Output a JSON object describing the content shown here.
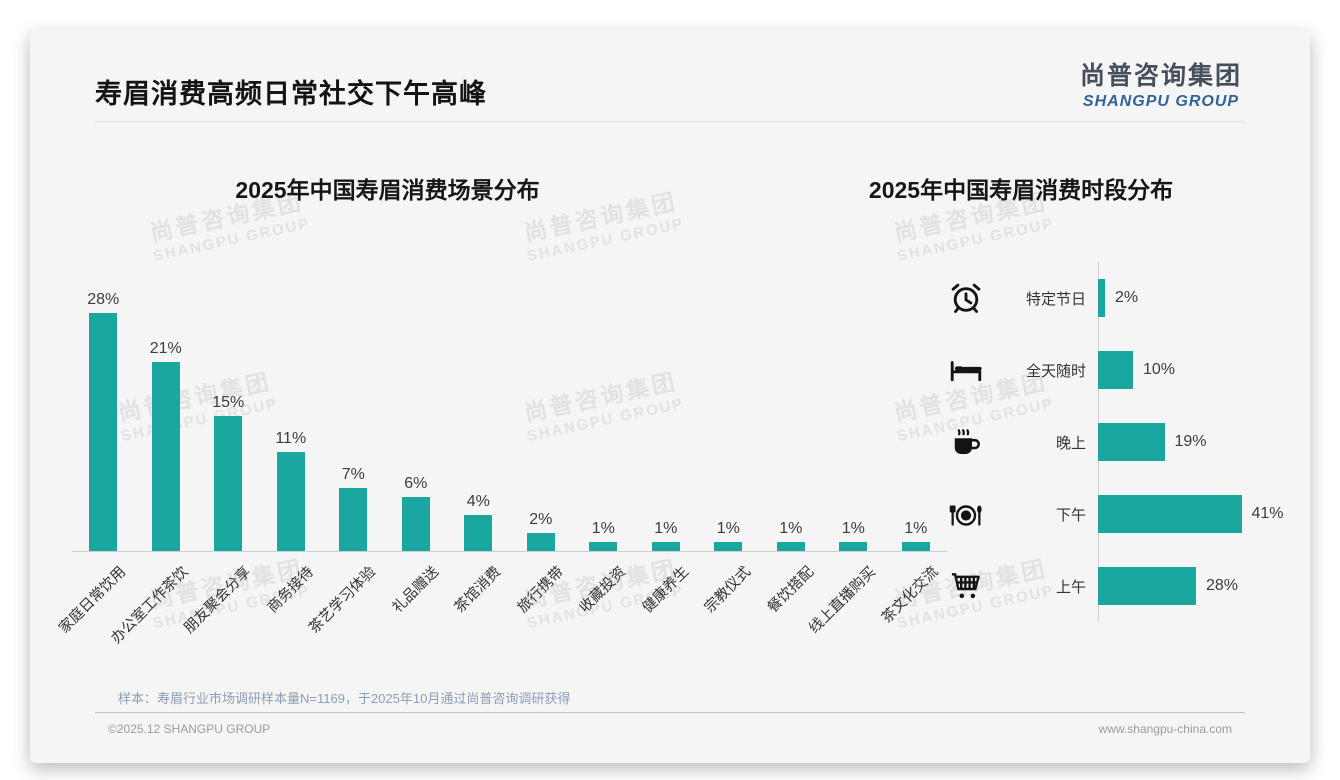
{
  "header": {
    "title": "寿眉消费高频日常社交下午高峰",
    "logo_zh": "尚普咨询集团",
    "logo_en": "SHANGPU GROUP"
  },
  "watermark": {
    "line1": "尚普咨询集团",
    "line2": "SHANGPU GROUP"
  },
  "colors": {
    "bar_teal": "#1aa7a0",
    "logo_blue": "#2f6399"
  },
  "chart_data": [
    {
      "type": "bar",
      "orientation": "vertical",
      "title": "2025年中国寿眉消费场景分布",
      "categories": [
        "家庭日常饮用",
        "办公室工作茶饮",
        "朋友聚会分享",
        "商务接待",
        "茶艺学习体验",
        "礼品赠送",
        "茶馆消费",
        "旅行携带",
        "收藏投资",
        "健康养生",
        "宗教仪式",
        "餐饮搭配",
        "线上直播购买",
        "茶文化交流"
      ],
      "values": [
        28,
        21,
        15,
        11,
        7,
        6,
        4,
        2,
        1,
        1,
        1,
        1,
        1,
        1
      ],
      "value_labels": [
        "28%",
        "21%",
        "15%",
        "11%",
        "7%",
        "6%",
        "4%",
        "2%",
        "1%",
        "1%",
        "1%",
        "1%",
        "1%",
        "1%"
      ],
      "unit": "%",
      "ylim": [
        0,
        30
      ],
      "grid": false,
      "legend": false,
      "bar_color": "#1aa7a0"
    },
    {
      "type": "bar",
      "orientation": "horizontal",
      "title": "2025年中国寿眉消费时段分布",
      "categories": [
        "特定节日",
        "全天随时",
        "晚上",
        "下午",
        "上午"
      ],
      "values": [
        2,
        10,
        19,
        41,
        28
      ],
      "value_labels": [
        "2%",
        "10%",
        "19%",
        "41%",
        "28%"
      ],
      "icons": [
        "alarm-clock-icon",
        "bed-icon",
        "hot-drink-icon",
        "dining-icon",
        "shopping-cart-icon"
      ],
      "unit": "%",
      "xlim": [
        0,
        45
      ],
      "grid": false,
      "legend": false,
      "bar_color": "#1aa7a0"
    }
  ],
  "footer": {
    "sample_note": "样本：寿眉行业市场调研样本量N=1169，于2025年10月通过尚普咨询调研获得",
    "copyright": "©2025.12 SHANGPU GROUP",
    "website": "www.shangpu-china.com"
  }
}
